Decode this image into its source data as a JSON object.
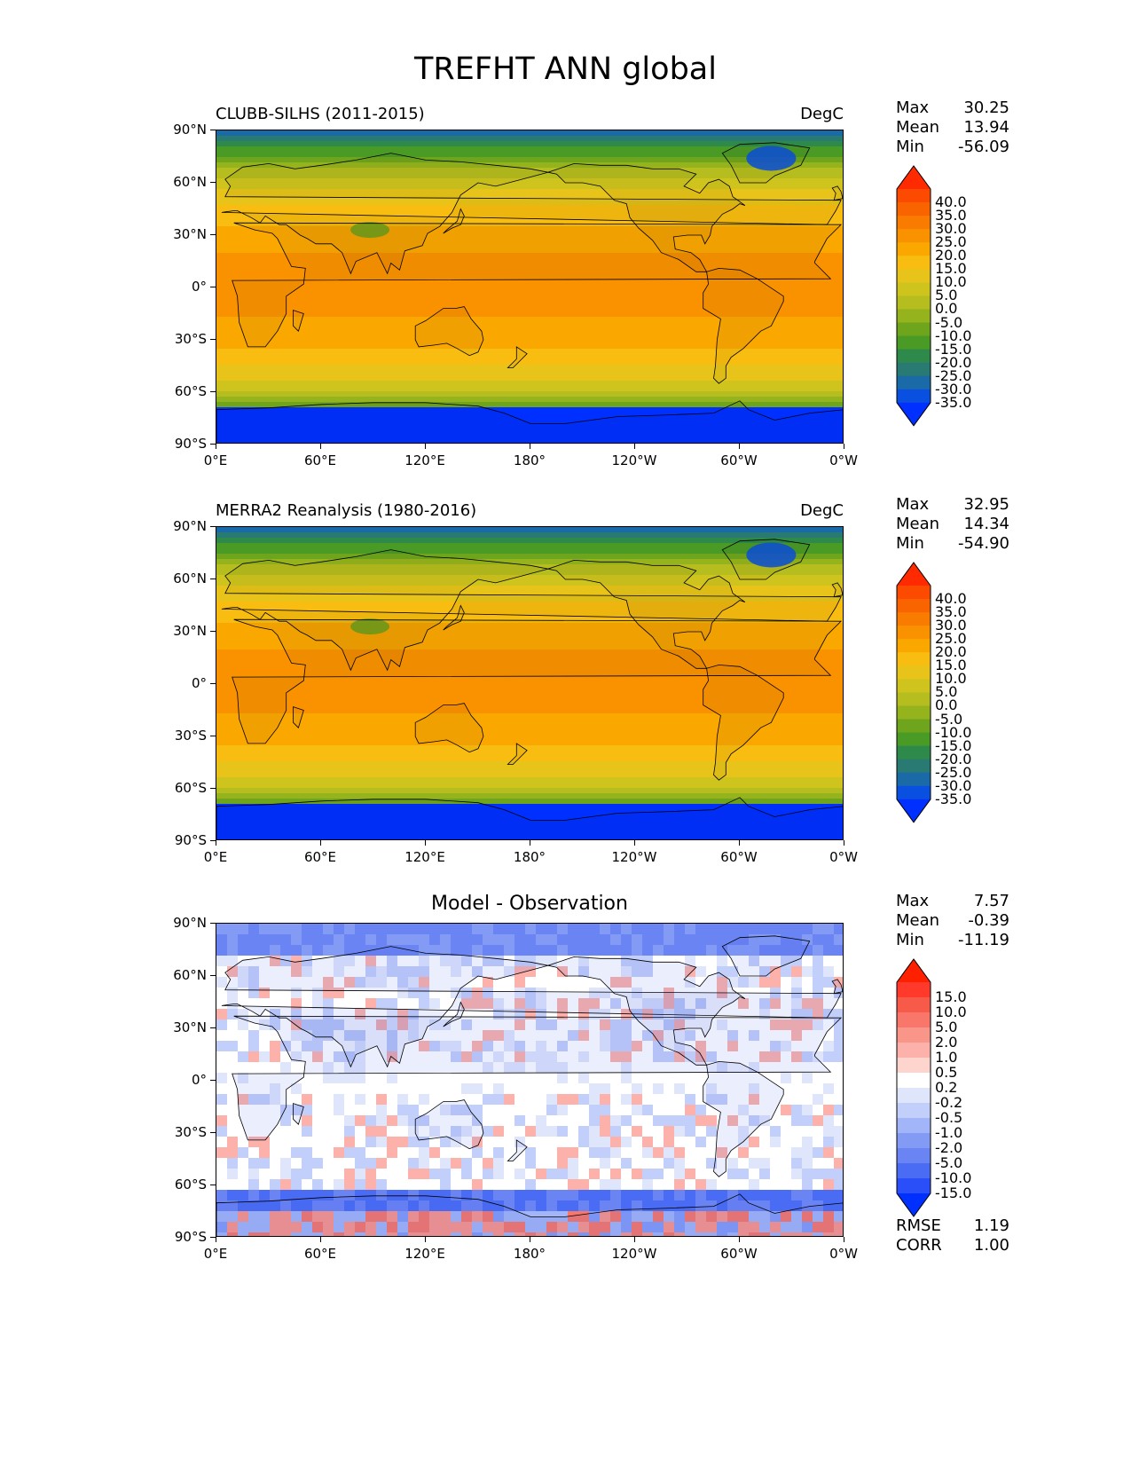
{
  "title": "TREFHT ANN global",
  "lat_labels": [
    "90°N",
    "60°N",
    "30°N",
    "0°",
    "30°S",
    "60°S",
    "90°S"
  ],
  "lon_labels": [
    "0°E",
    "60°E",
    "120°E",
    "180°",
    "120°W",
    "60°W",
    "0°W"
  ],
  "panels": [
    {
      "left_title": "CLUBB-SILHS (2011-2015)",
      "right_title": "DegC",
      "center_title": "",
      "stats": [
        {
          "label": "Max",
          "value": "30.25"
        },
        {
          "label": "Mean",
          "value": "13.94"
        },
        {
          "label": "Min",
          "value": "-56.09"
        }
      ],
      "cbar_labels": [
        "40.0",
        "35.0",
        "30.0",
        "25.0",
        "20.0",
        "15.0",
        "10.0",
        "5.0",
        "0.0",
        "-5.0",
        "-10.0",
        "-15.0",
        "-20.0",
        "-25.0",
        "-30.0",
        "-35.0"
      ],
      "cbar_colors": [
        "#ff2a00",
        "#fc4a00",
        "#fa6400",
        "#f97c00",
        "#fa9200",
        "#faa700",
        "#f8bd10",
        "#e8c41a",
        "#cfc41d",
        "#b6bd1e",
        "#95b31d",
        "#6fa51d",
        "#4a9a26",
        "#2e8a4a",
        "#2a7a74",
        "#1a6aa8",
        "#0a50e0",
        "#0030ff"
      ],
      "colormap": "temp"
    },
    {
      "left_title": "MERRA2 Reanalysis (1980-2016)",
      "right_title": "DegC",
      "center_title": "",
      "stats": [
        {
          "label": "Max",
          "value": "32.95"
        },
        {
          "label": "Mean",
          "value": "14.34"
        },
        {
          "label": "Min",
          "value": "-54.90"
        }
      ],
      "cbar_labels": [
        "40.0",
        "35.0",
        "30.0",
        "25.0",
        "20.0",
        "15.0",
        "10.0",
        "5.0",
        "0.0",
        "-5.0",
        "-10.0",
        "-15.0",
        "-20.0",
        "-25.0",
        "-30.0",
        "-35.0"
      ],
      "cbar_colors": [
        "#ff2a00",
        "#fc4a00",
        "#fa6400",
        "#f97c00",
        "#fa9200",
        "#faa700",
        "#f8bd10",
        "#e8c41a",
        "#cfc41d",
        "#b6bd1e",
        "#95b31d",
        "#6fa51d",
        "#4a9a26",
        "#2e8a4a",
        "#2a7a74",
        "#1a6aa8",
        "#0a50e0",
        "#0030ff"
      ],
      "colormap": "temp"
    },
    {
      "left_title": "",
      "right_title": "",
      "center_title": "Model - Observation",
      "stats": [
        {
          "label": "Max",
          "value": "7.57"
        },
        {
          "label": "Mean",
          "value": "-0.39"
        },
        {
          "label": "Min",
          "value": "-11.19"
        }
      ],
      "cbar_labels": [
        "15.0",
        "10.0",
        "5.0",
        "2.0",
        "1.0",
        "0.5",
        "0.2",
        "-0.2",
        "-0.5",
        "-1.0",
        "-2.0",
        "-5.0",
        "-10.0",
        "-15.0"
      ],
      "cbar_colors": [
        "#ff2000",
        "#ff3a2a",
        "#f85a4a",
        "#f8766a",
        "#fa958a",
        "#fcb2aa",
        "#fed4cf",
        "#ffffff",
        "#dfe6fc",
        "#c2cffa",
        "#a2b5f8",
        "#849bf6",
        "#6a84f4",
        "#4a6bf4",
        "#2a4ef8",
        "#0030ff"
      ],
      "colormap": "diff",
      "footer_stats": [
        {
          "label": "RMSE",
          "value": "1.19"
        },
        {
          "label": "CORR",
          "value": "1.00"
        }
      ]
    }
  ]
}
